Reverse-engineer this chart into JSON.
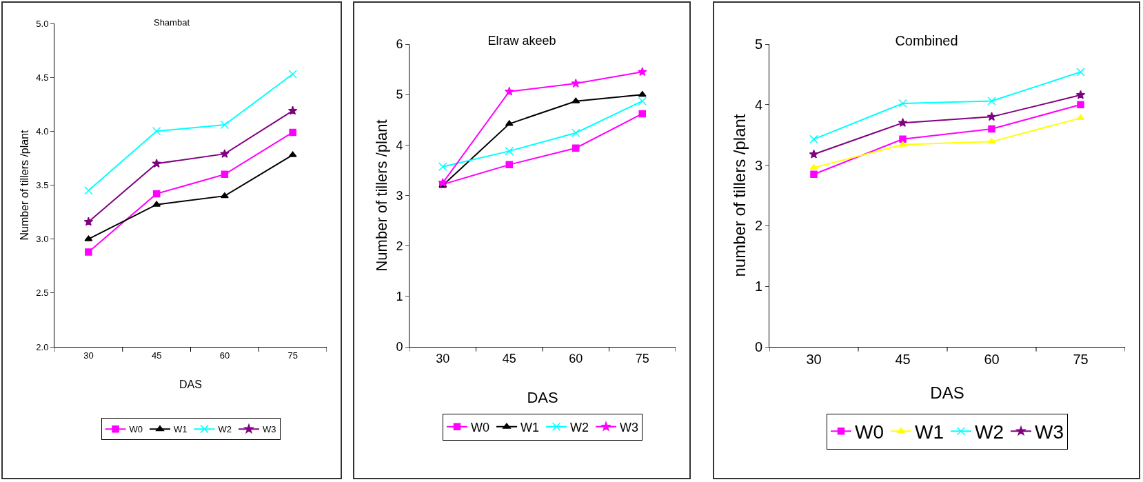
{
  "chart_data": [
    {
      "type": "line",
      "title": "Shambat",
      "xlabel": "DAS",
      "ylabel": "Number of tillers /plant",
      "categories": [
        "30",
        "45",
        "60",
        "75"
      ],
      "ylim": [
        2,
        5
      ],
      "yticks": [
        {
          "value": 2,
          "label": "2.0"
        },
        {
          "value": 2.5,
          "label": "2.5"
        },
        {
          "value": 3,
          "label": "3.0"
        },
        {
          "value": 3.5,
          "label": "3.5"
        },
        {
          "value": 4,
          "label": "4.0"
        },
        {
          "value": 4.5,
          "label": "4.5"
        },
        {
          "value": 5,
          "label": "5.0"
        }
      ],
      "grid": false,
      "legend": "bottom",
      "series": [
        {
          "name": "W0",
          "color": "#ff00ff",
          "marker": "square",
          "values": [
            2.88,
            3.42,
            3.6,
            3.99
          ]
        },
        {
          "name": "W1",
          "color": "#000000",
          "marker": "triangle",
          "values": [
            3.0,
            3.32,
            3.4,
            3.78
          ]
        },
        {
          "name": "W2",
          "color": "#00ffff",
          "marker": "cross",
          "values": [
            3.45,
            4.0,
            4.06,
            4.53
          ]
        },
        {
          "name": "W3",
          "color": "#800080",
          "marker": "star",
          "values": [
            3.16,
            3.7,
            3.79,
            4.19
          ]
        }
      ]
    },
    {
      "type": "line",
      "title": "Elraw akeeb",
      "xlabel": "DAS",
      "ylabel": "Number of tillers /plant",
      "categories": [
        "30",
        "45",
        "60",
        "75"
      ],
      "ylim": [
        0,
        6
      ],
      "yticks": [
        0,
        1,
        2,
        3,
        4,
        5,
        6
      ],
      "grid": false,
      "legend": "bottom",
      "series": [
        {
          "name": "W0",
          "color": "#ff00ff",
          "marker": "square",
          "values": [
            3.22,
            3.61,
            3.94,
            4.62
          ]
        },
        {
          "name": "W1",
          "color": "#000000",
          "marker": "triangle",
          "values": [
            3.2,
            4.42,
            4.87,
            5.0
          ]
        },
        {
          "name": "W2",
          "color": "#00ffff",
          "marker": "cross",
          "values": [
            3.57,
            3.88,
            4.24,
            4.87
          ]
        },
        {
          "name": "W3",
          "color": "#ff00ff",
          "marker": "star",
          "values": [
            3.25,
            5.06,
            5.22,
            5.45
          ]
        }
      ]
    },
    {
      "type": "line",
      "title": "Combined",
      "xlabel": "DAS",
      "ylabel": "number of tillers /plant",
      "categories": [
        "30",
        "45",
        "60",
        "75"
      ],
      "ylim": [
        0,
        5
      ],
      "yticks": [
        0,
        1,
        2,
        3,
        4,
        5
      ],
      "grid": false,
      "legend": "bottom",
      "series": [
        {
          "name": "W0",
          "color": "#ff00ff",
          "marker": "square",
          "values": [
            2.85,
            3.43,
            3.6,
            4.0
          ]
        },
        {
          "name": "W1",
          "color": "#ffff00",
          "marker": "triangle",
          "values": [
            2.96,
            3.34,
            3.39,
            3.78
          ]
        },
        {
          "name": "W2",
          "color": "#00ffff",
          "marker": "cross",
          "values": [
            3.43,
            4.02,
            4.06,
            4.54
          ]
        },
        {
          "name": "W3",
          "color": "#800080",
          "marker": "star",
          "values": [
            3.18,
            3.7,
            3.8,
            4.16
          ]
        }
      ]
    }
  ]
}
